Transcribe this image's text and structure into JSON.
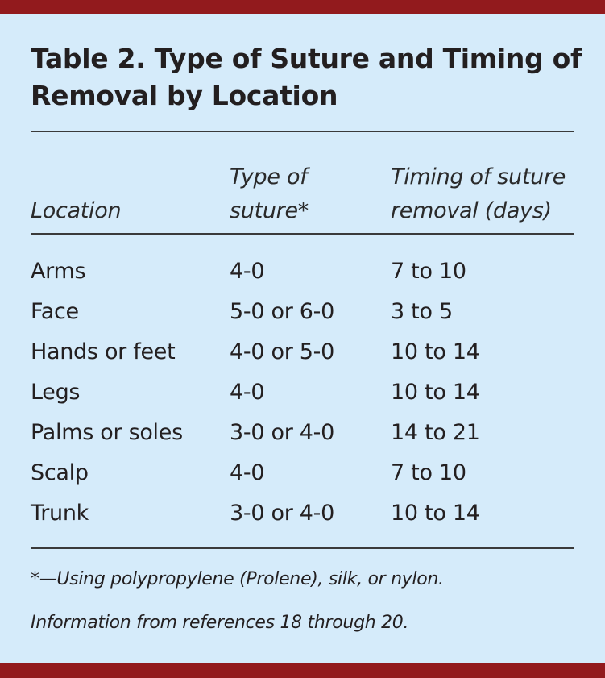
{
  "colors": {
    "band": "#921a1d",
    "background": "#d5ebfa",
    "text": "#231f20"
  },
  "title": "Table 2. Type of Suture and Timing of Removal by Location",
  "headers": [
    {
      "line1": "",
      "line2": "Location"
    },
    {
      "line1": "Type of",
      "line2": "suture*"
    },
    {
      "line1": "Timing of suture",
      "line2": "removal (days)"
    }
  ],
  "rows": [
    [
      "Arms",
      "4-0",
      "7 to 10"
    ],
    [
      "Face",
      "5-0 or 6-0",
      "3 to 5"
    ],
    [
      "Hands or feet",
      "4-0 or 5-0",
      "10 to 14"
    ],
    [
      "Legs",
      "4-0",
      "10 to 14"
    ],
    [
      "Palms or soles",
      "3-0 or 4-0",
      "14 to 21"
    ],
    [
      "Scalp",
      "4-0",
      "7 to 10"
    ],
    [
      "Trunk",
      "3-0 or 4-0",
      "10 to 14"
    ]
  ],
  "footnotes": [
    "*—Using polypropylene (Prolene), silk, or nylon.",
    "Information from references 18 through 20."
  ]
}
